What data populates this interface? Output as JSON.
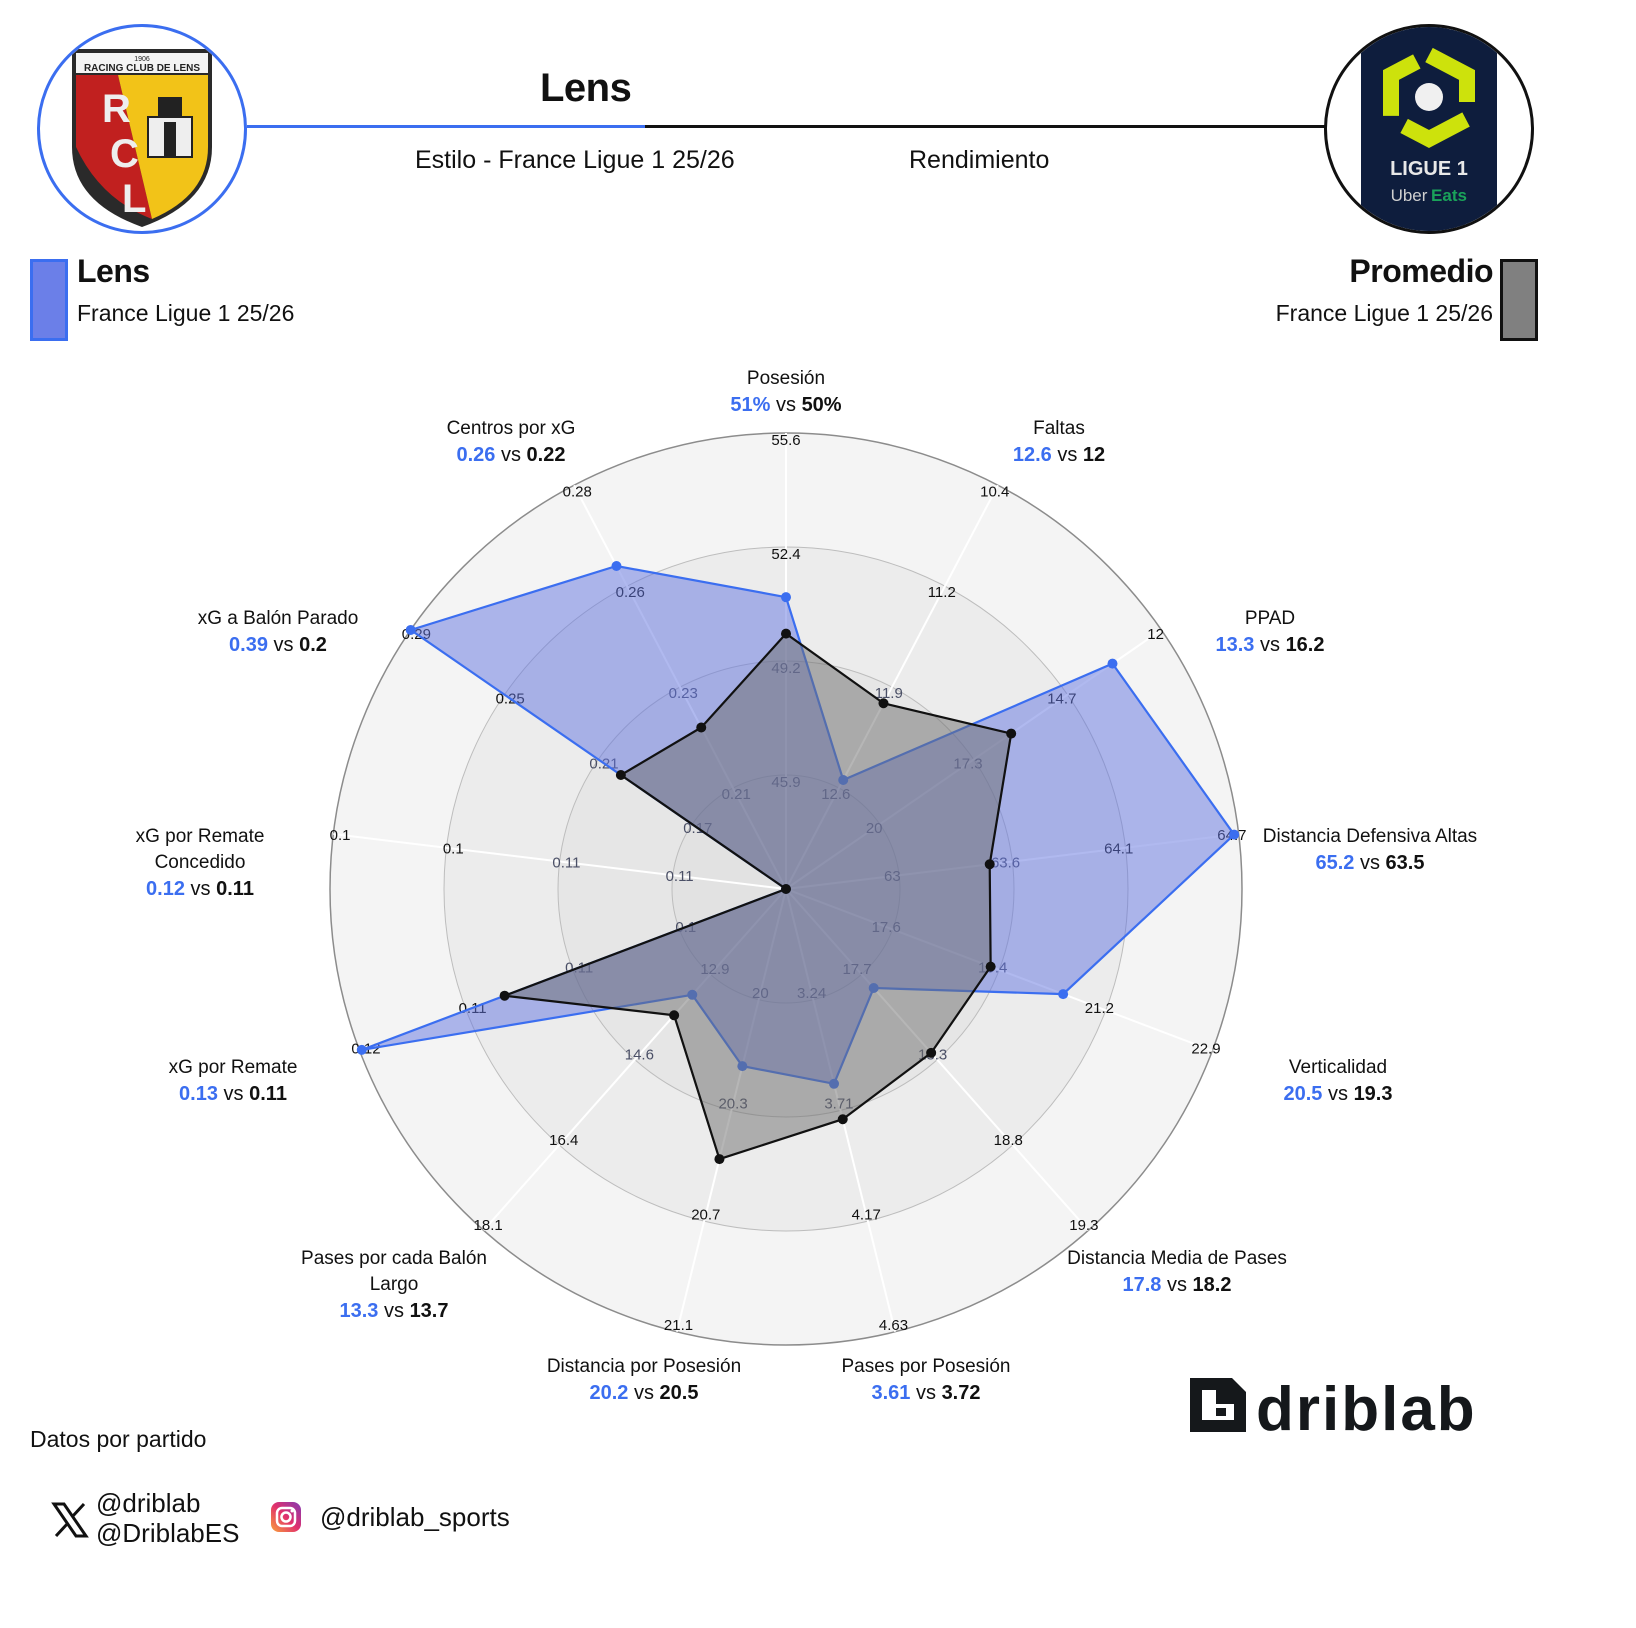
{
  "header": {
    "title": "Lens",
    "subtitle_left": "Estilo - France Ligue 1 25/26",
    "subtitle_right": "Rendimiento",
    "team_logo": {
      "name": "racing-club-de-lens-crest",
      "year": "1906",
      "text": "RACING CLUB DE LENS",
      "letters": "RCL"
    },
    "league_logo": {
      "name": "ligue-1-uber-eats-logo",
      "line1": "LIGUE 1",
      "line2a": "Uber",
      "line2b": "Eats"
    }
  },
  "legend": {
    "team": {
      "name": "Lens",
      "sub": "France Ligue 1 25/26",
      "color": "#6b7fe8"
    },
    "average": {
      "name": "Promedio",
      "sub": "France Ligue 1 25/26",
      "color": "#808080"
    }
  },
  "colors": {
    "team": "#3b6ef0",
    "team_fill": "rgba(98,116,224,0.50)",
    "average": "#111111",
    "average_fill": "rgba(110,110,110,0.50)",
    "ring_bg_outer": "#f4f4f4",
    "ring_bg_inner": "#e6e6e6"
  },
  "chart_data": {
    "type": "radar",
    "title": "Lens",
    "subtitle": "Estilo - France Ligue 1 25/26 / Rendimiento",
    "note": "Datos por partido",
    "series": [
      {
        "name": "Lens",
        "values": [
          51,
          12.6,
          13.3,
          65.2,
          20.5,
          17.8,
          3.61,
          20.2,
          13.3,
          0.13,
          0.12,
          0.39,
          0.26
        ]
      },
      {
        "name": "Promedio",
        "values": [
          50,
          12,
          16.2,
          63.5,
          19.3,
          18.2,
          3.72,
          20.5,
          13.7,
          0.11,
          0.11,
          0.2,
          0.22
        ]
      }
    ],
    "axes": [
      {
        "name": "Posesión",
        "team": "51%",
        "avg": "50%",
        "ticks": [
          "45.9",
          "49.2",
          "52.4",
          "55.6"
        ],
        "r_team": 0.64,
        "r_avg": 0.56
      },
      {
        "name": "Faltas",
        "team": "12.6",
        "avg": "12",
        "ticks": [
          "12.6",
          "11.9",
          "11.2",
          "10.4"
        ],
        "r_team": 0.27,
        "r_avg": 0.46
      },
      {
        "name": "PPAD",
        "team": "13.3",
        "avg": "16.2",
        "ticks": [
          "20",
          "17.3",
          "14.7",
          "12"
        ],
        "r_team": 0.87,
        "r_avg": 0.6
      },
      {
        "name": "Distancia Defensiva Altas",
        "team": "65.2",
        "avg": "63.5",
        "ticks": [
          "63",
          "63.6",
          "64.1",
          "64.7"
        ],
        "r_team": 0.99,
        "r_avg": 0.45
      },
      {
        "name": "Verticalidad",
        "team": "20.5",
        "avg": "19.3",
        "ticks": [
          "17.6",
          "19.4",
          "21.2",
          "22.9"
        ],
        "r_team": 0.65,
        "r_avg": 0.48
      },
      {
        "name": "Distancia Media de Pases",
        "team": "17.8",
        "avg": "18.2",
        "ticks": [
          "17.7",
          "18.3",
          "18.8",
          "19.3"
        ],
        "r_team": 0.29,
        "r_avg": 0.48
      },
      {
        "name": "Pases por Posesión",
        "team": "3.61",
        "avg": "3.72",
        "ticks": [
          "3.24",
          "3.71",
          "4.17",
          "4.63"
        ],
        "r_team": 0.44,
        "r_avg": 0.52
      },
      {
        "name": "Distancia por Posesión",
        "team": "20.2",
        "avg": "20.5",
        "ticks": [
          "20",
          "20.3",
          "20.7",
          "21.1"
        ],
        "r_team": 0.4,
        "r_avg": 0.61
      },
      {
        "name": "Pases por cada Balón Largo",
        "team": "13.3",
        "avg": "13.7",
        "ticks": [
          "12.9",
          "14.6",
          "16.4",
          "18.1"
        ],
        "r_team": 0.31,
        "r_avg": 0.37
      },
      {
        "name": "xG por Remate",
        "team": "0.13",
        "avg": "0.11",
        "ticks": [
          "0.1",
          "0.11",
          "0.11",
          "0.12"
        ],
        "r_team": 0.995,
        "r_avg": 0.66
      },
      {
        "name": "xG por Remate Concedido",
        "team": "0.12",
        "avg": "0.11",
        "ticks": [
          "0.11",
          "0.11",
          "0.1",
          "0.1"
        ],
        "r_team": 0.0,
        "r_avg": 0.0
      },
      {
        "name": "xG a Balón Parado",
        "team": "0.39",
        "avg": "0.2",
        "ticks": [
          "0.17",
          "0.21",
          "0.25",
          "0.29"
        ],
        "r_team": 1.0,
        "r_avg": 0.44
      },
      {
        "name": "Centros por xG",
        "team": "0.26",
        "avg": "0.22",
        "ticks": [
          "0.21",
          "0.23",
          "0.26",
          "0.28"
        ],
        "r_team": 0.8,
        "r_avg": 0.4
      }
    ],
    "grid": true,
    "rings": 4
  },
  "axis_labels": [
    {
      "name": "Posesión",
      "team": "51%",
      "vs": "vs",
      "avg": "50%"
    },
    {
      "name": "Faltas",
      "team": "12.6",
      "vs": "vs",
      "avg": "12"
    },
    {
      "name": "PPAD",
      "team": "13.3",
      "vs": "vs",
      "avg": "16.2"
    },
    {
      "name": "Distancia Defensiva Altas",
      "team": "65.2",
      "vs": "vs",
      "avg": "63.5"
    },
    {
      "name": "Verticalidad",
      "team": "20.5",
      "vs": "vs",
      "avg": "19.3"
    },
    {
      "name": "Distancia Media de Pases",
      "team": "17.8",
      "vs": "vs",
      "avg": "18.2"
    },
    {
      "name": "Pases por Posesión",
      "team": "3.61",
      "vs": "vs",
      "avg": "3.72"
    },
    {
      "name": "Distancia por Posesión",
      "team": "20.2",
      "vs": "vs",
      "avg": "20.5"
    },
    {
      "name": "Pases por cada Balón\nLargo",
      "team": "13.3",
      "vs": "vs",
      "avg": "13.7"
    },
    {
      "name": "xG por Remate",
      "team": "0.13",
      "vs": "vs",
      "avg": "0.11"
    },
    {
      "name": "xG por Remate\nConcedido",
      "team": "0.12",
      "vs": "vs",
      "avg": "0.11"
    },
    {
      "name": "xG a Balón Parado",
      "team": "0.39",
      "vs": "vs",
      "avg": "0.2"
    },
    {
      "name": "Centros por xG",
      "team": "0.26",
      "vs": "vs",
      "avg": "0.22"
    }
  ],
  "footer": {
    "note": "Datos por partido",
    "twitter_handles": [
      "@driblab",
      "@DriblabES"
    ],
    "instagram_handle": "@driblab_sports",
    "brand": "driblab"
  }
}
